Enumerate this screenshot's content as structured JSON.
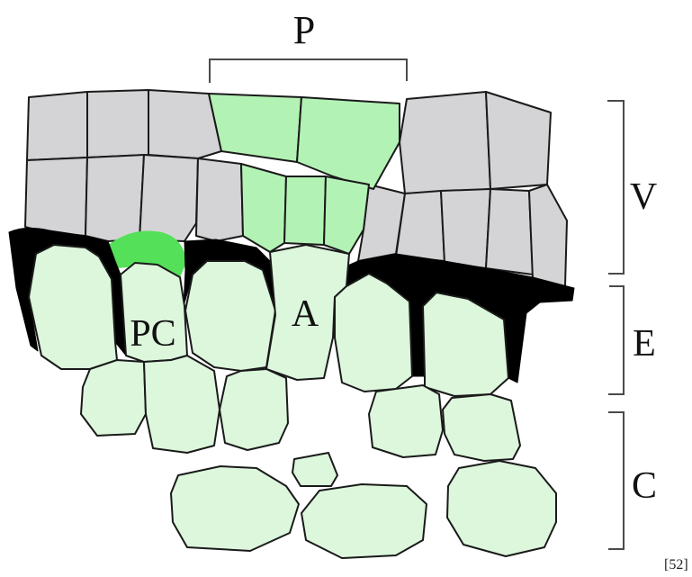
{
  "labels": {
    "p": "P",
    "v": "V",
    "e": "E",
    "c": "C",
    "pc": "PC",
    "a": "A",
    "ref": "[52]"
  },
  "colors": {
    "grey_cell": "#d4d4d6",
    "green_cell": "#b3f2b5",
    "pale_green_cell": "#dcf7dc",
    "bright_green": "#55e059",
    "dark_band": "#000000",
    "outline": "#1a1a1a"
  }
}
